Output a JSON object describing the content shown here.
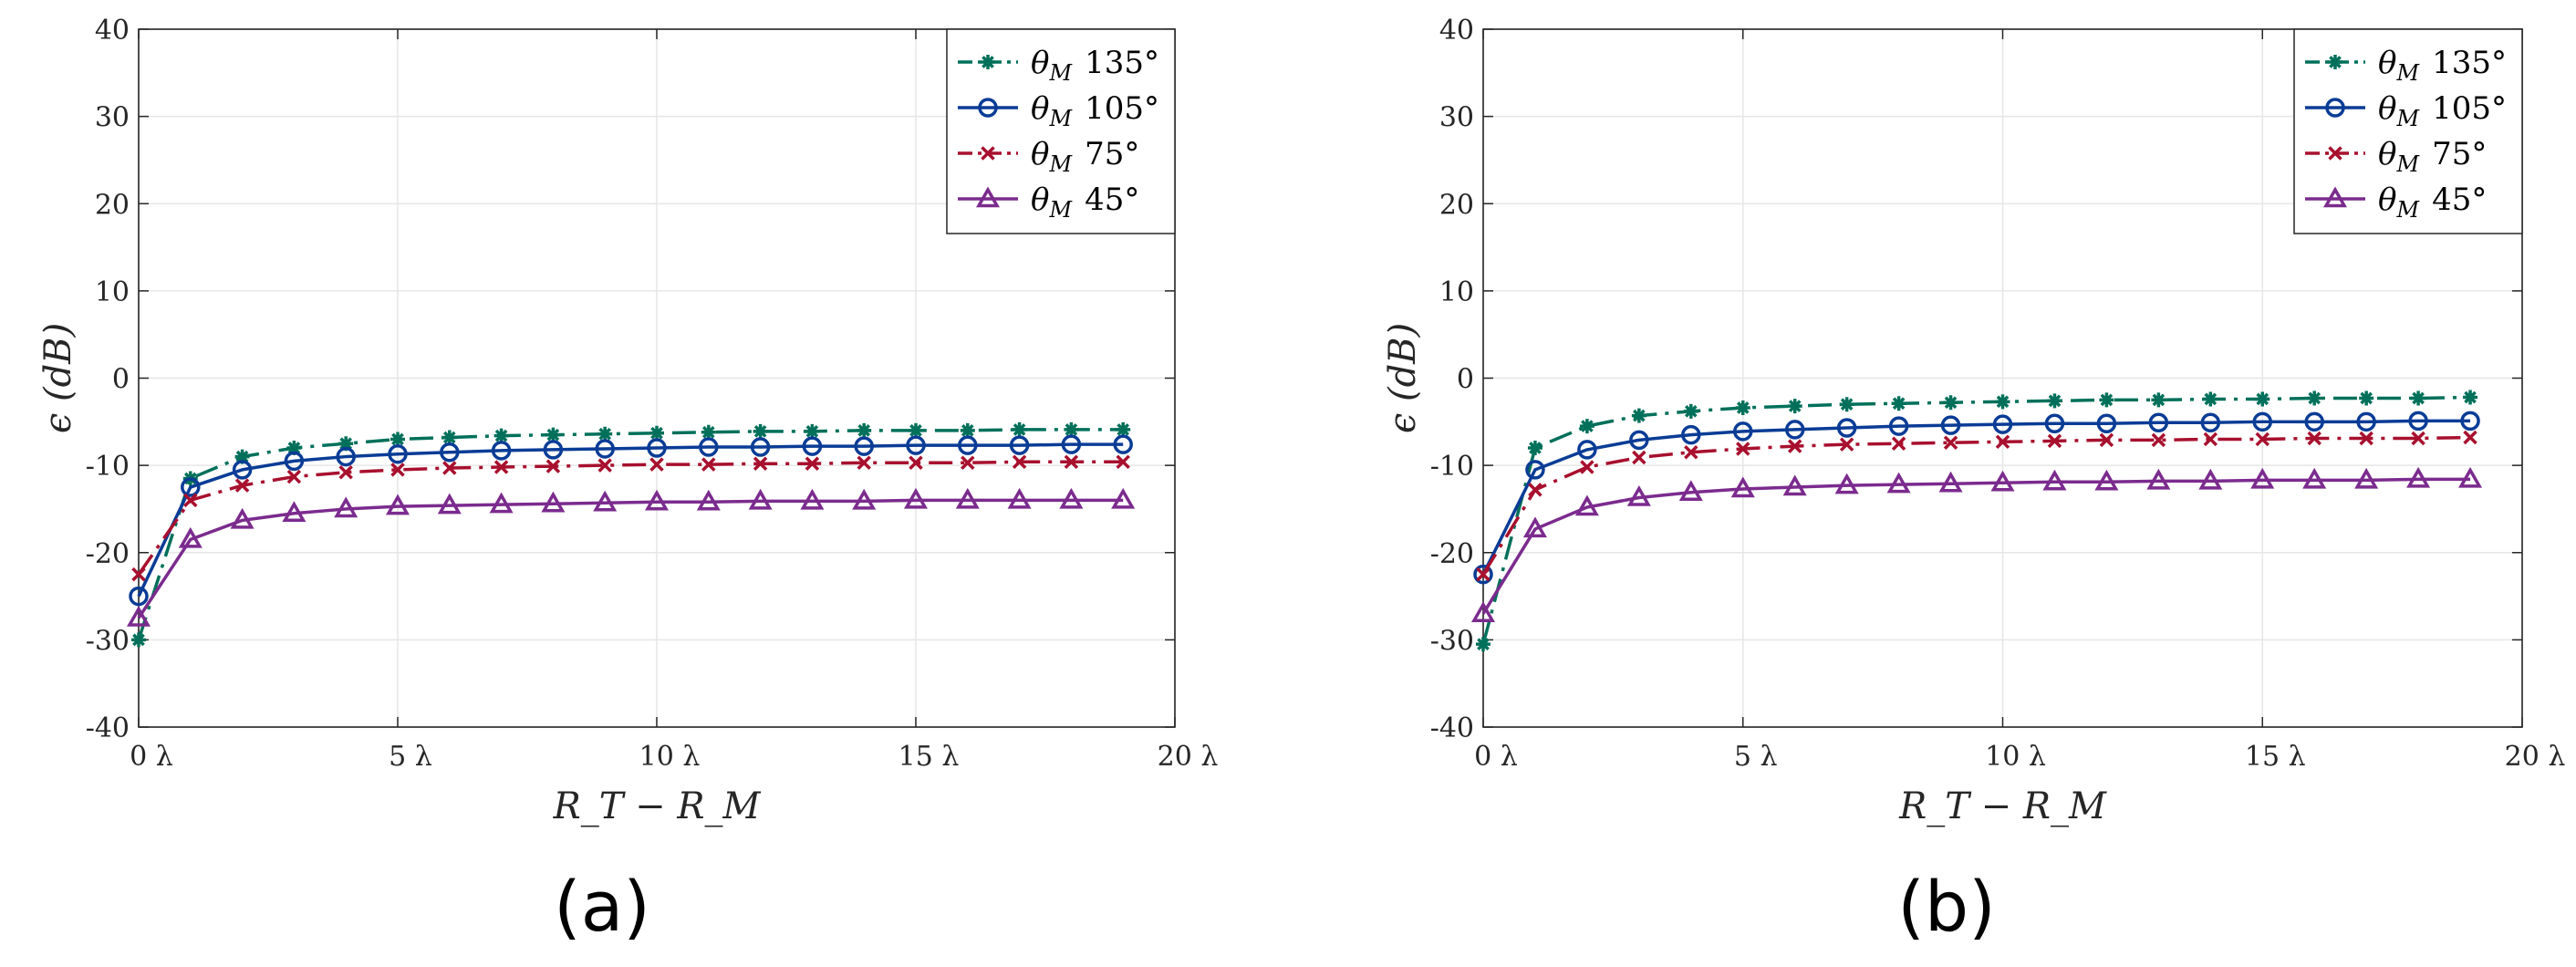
{
  "chart_data": [
    {
      "type": "line",
      "caption": "(a)",
      "xlabel": "R_T − R_M",
      "ylabel": "ϵ (dB)",
      "xlim": [
        0,
        20
      ],
      "ylim": [
        -40,
        40
      ],
      "xticks": [
        0,
        5,
        10,
        15,
        20
      ],
      "xtick_labels": [
        "0 λ",
        "5 λ",
        "10 λ",
        "15 λ",
        "20 λ"
      ],
      "yticks": [
        -40,
        -30,
        -20,
        -10,
        0,
        10,
        20,
        30,
        40
      ],
      "ytick_labels": [
        "-40",
        "-30",
        "-20",
        "-10",
        "0",
        "10",
        "20",
        "30",
        "40"
      ],
      "grid": true,
      "legend_position": "top-right",
      "x": [
        0,
        1,
        2,
        3,
        4,
        5,
        6,
        7,
        8,
        9,
        10,
        11,
        12,
        13,
        14,
        15,
        16,
        17,
        18,
        19
      ],
      "series": [
        {
          "name": "θM 135°",
          "legend_symbol": "θ",
          "legend_sub": "M",
          "legend_value": "135°",
          "color": "#00705a",
          "marker": "star",
          "dash": "dashdot",
          "values": [
            -30,
            -11.5,
            -9,
            -8,
            -7.5,
            -7,
            -6.8,
            -6.6,
            -6.5,
            -6.4,
            -6.3,
            -6.2,
            -6.1,
            -6.1,
            -6,
            -6,
            -6,
            -5.9,
            -5.9,
            -5.9
          ]
        },
        {
          "name": "θM 105°",
          "legend_symbol": "θ",
          "legend_sub": "M",
          "legend_value": "105°",
          "color": "#0a3c96",
          "marker": "circle",
          "dash": "solid",
          "values": [
            -25,
            -12.5,
            -10.5,
            -9.5,
            -9,
            -8.7,
            -8.5,
            -8.3,
            -8.2,
            -8.1,
            -8,
            -7.9,
            -7.9,
            -7.8,
            -7.8,
            -7.7,
            -7.7,
            -7.7,
            -7.6,
            -7.6
          ]
        },
        {
          "name": "θM 75°",
          "legend_symbol": "θ",
          "legend_sub": "M",
          "legend_value": "75°",
          "color": "#a8102e",
          "marker": "x",
          "dash": "dashdot",
          "values": [
            -22.5,
            -14,
            -12.3,
            -11.3,
            -10.8,
            -10.5,
            -10.3,
            -10.2,
            -10.1,
            -10,
            -9.9,
            -9.9,
            -9.8,
            -9.8,
            -9.7,
            -9.7,
            -9.7,
            -9.6,
            -9.6,
            -9.6
          ]
        },
        {
          "name": "θM 45°",
          "legend_symbol": "θ",
          "legend_sub": "M",
          "legend_value": "45°",
          "color": "#7b2b8e",
          "marker": "triangle",
          "dash": "solid",
          "values": [
            -27.5,
            -18.5,
            -16.3,
            -15.5,
            -15,
            -14.7,
            -14.6,
            -14.5,
            -14.4,
            -14.3,
            -14.2,
            -14.2,
            -14.1,
            -14.1,
            -14.1,
            -14,
            -14,
            -14,
            -14,
            -14
          ]
        }
      ]
    },
    {
      "type": "line",
      "caption": "(b)",
      "xlabel": "R_T − R_M",
      "ylabel": "ϵ (dB)",
      "xlim": [
        0,
        20
      ],
      "ylim": [
        -40,
        40
      ],
      "xticks": [
        0,
        5,
        10,
        15,
        20
      ],
      "xtick_labels": [
        "0 λ",
        "5 λ",
        "10 λ",
        "15 λ",
        "20 λ"
      ],
      "yticks": [
        -40,
        -30,
        -20,
        -10,
        0,
        10,
        20,
        30,
        40
      ],
      "ytick_labels": [
        "-40",
        "-30",
        "-20",
        "-10",
        "0",
        "10",
        "20",
        "30",
        "40"
      ],
      "grid": true,
      "legend_position": "top-right",
      "x": [
        0,
        1,
        2,
        3,
        4,
        5,
        6,
        7,
        8,
        9,
        10,
        11,
        12,
        13,
        14,
        15,
        16,
        17,
        18,
        19
      ],
      "series": [
        {
          "name": "θM 135°",
          "legend_symbol": "θ",
          "legend_sub": "M",
          "legend_value": "135°",
          "color": "#00705a",
          "marker": "star",
          "dash": "dashdot",
          "values": [
            -30.5,
            -8,
            -5.5,
            -4.3,
            -3.8,
            -3.4,
            -3.2,
            -3,
            -2.9,
            -2.8,
            -2.7,
            -2.6,
            -2.5,
            -2.5,
            -2.4,
            -2.4,
            -2.3,
            -2.3,
            -2.3,
            -2.2
          ]
        },
        {
          "name": "θM 105°",
          "legend_symbol": "θ",
          "legend_sub": "M",
          "legend_value": "105°",
          "color": "#0a3c96",
          "marker": "circle",
          "dash": "solid",
          "values": [
            -22.5,
            -10.5,
            -8.2,
            -7.1,
            -6.5,
            -6.1,
            -5.9,
            -5.7,
            -5.5,
            -5.4,
            -5.3,
            -5.2,
            -5.2,
            -5.1,
            -5.1,
            -5,
            -5,
            -5,
            -4.9,
            -4.9
          ]
        },
        {
          "name": "θM 75°",
          "legend_symbol": "θ",
          "legend_sub": "M",
          "legend_value": "75°",
          "color": "#a8102e",
          "marker": "x",
          "dash": "dashdot",
          "values": [
            -22.5,
            -12.8,
            -10.2,
            -9.1,
            -8.5,
            -8.1,
            -7.8,
            -7.6,
            -7.5,
            -7.4,
            -7.3,
            -7.2,
            -7.1,
            -7.1,
            -7,
            -7,
            -6.9,
            -6.9,
            -6.9,
            -6.8
          ]
        },
        {
          "name": "θM 45°",
          "legend_symbol": "θ",
          "legend_sub": "M",
          "legend_value": "45°",
          "color": "#7b2b8e",
          "marker": "triangle",
          "dash": "solid",
          "values": [
            -27,
            -17.3,
            -14.8,
            -13.7,
            -13.1,
            -12.7,
            -12.5,
            -12.3,
            -12.2,
            -12.1,
            -12,
            -11.9,
            -11.9,
            -11.8,
            -11.8,
            -11.7,
            -11.7,
            -11.7,
            -11.6,
            -11.6
          ]
        }
      ]
    }
  ]
}
